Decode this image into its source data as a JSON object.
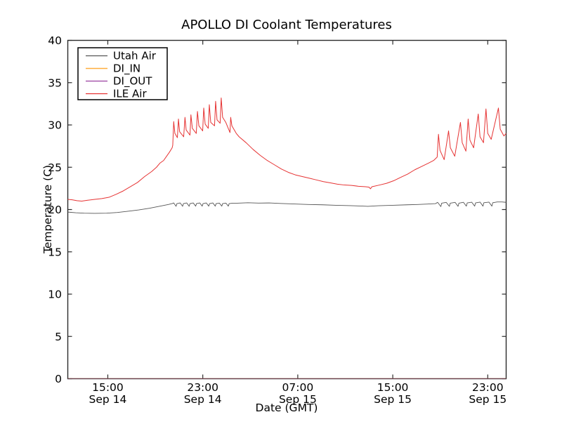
{
  "figure": {
    "background": "#ffffff",
    "axis_color": "#2b2b2b",
    "tick_length": 6
  },
  "chart_data": {
    "type": "line",
    "title": "APOLLO DI Coolant Temperatures",
    "xlabel": "Date (GMT)",
    "ylabel": "Temperature (C)",
    "ylim": [
      0,
      40
    ],
    "y_ticks": [
      0,
      5,
      10,
      15,
      20,
      25,
      30,
      35,
      40
    ],
    "x_range_hours_from_sep14_0000_gmt": [
      11.63,
      48.55
    ],
    "x_ticks": [
      {
        "t": 15,
        "time": "15:00",
        "date": "Sep 14"
      },
      {
        "t": 23,
        "time": "23:00",
        "date": "Sep 14"
      },
      {
        "t": 31,
        "time": "07:00",
        "date": "Sep 15"
      },
      {
        "t": 39,
        "time": "15:00",
        "date": "Sep 15"
      },
      {
        "t": 47,
        "time": "23:00",
        "date": "Sep 15"
      }
    ],
    "grid": false,
    "legend": {
      "position": "upper-left",
      "border_color": "#000000",
      "background": "#ffffff"
    },
    "series": [
      {
        "name": "Utah Air",
        "color": "#555555",
        "width": 0.9,
        "opacity": 1,
        "points": [
          [
            11.63,
            19.7
          ],
          [
            12.3,
            19.62
          ],
          [
            13.0,
            19.57
          ],
          [
            13.9,
            19.55
          ],
          [
            14.9,
            19.57
          ],
          [
            15.8,
            19.65
          ],
          [
            16.7,
            19.8
          ],
          [
            17.6,
            19.95
          ],
          [
            18.5,
            20.15
          ],
          [
            19.4,
            20.4
          ],
          [
            20.1,
            20.6
          ],
          [
            20.45,
            20.72
          ],
          [
            20.55,
            20.78
          ],
          [
            20.75,
            20.38
          ],
          [
            20.82,
            20.7
          ],
          [
            21.1,
            20.78
          ],
          [
            21.3,
            20.38
          ],
          [
            21.37,
            20.7
          ],
          [
            21.65,
            20.78
          ],
          [
            21.85,
            20.38
          ],
          [
            21.92,
            20.7
          ],
          [
            22.2,
            20.78
          ],
          [
            22.4,
            20.4
          ],
          [
            22.47,
            20.7
          ],
          [
            22.75,
            20.78
          ],
          [
            22.95,
            20.4
          ],
          [
            23.02,
            20.7
          ],
          [
            23.3,
            20.78
          ],
          [
            23.5,
            20.4
          ],
          [
            23.57,
            20.7
          ],
          [
            23.85,
            20.78
          ],
          [
            24.05,
            20.4
          ],
          [
            24.12,
            20.7
          ],
          [
            24.4,
            20.76
          ],
          [
            24.6,
            20.4
          ],
          [
            24.67,
            20.7
          ],
          [
            24.95,
            20.76
          ],
          [
            25.15,
            20.4
          ],
          [
            25.22,
            20.7
          ],
          [
            25.5,
            20.75
          ],
          [
            25.9,
            20.75
          ],
          [
            26.8,
            20.8
          ],
          [
            27.7,
            20.76
          ],
          [
            28.6,
            20.78
          ],
          [
            29.5,
            20.72
          ],
          [
            30.7,
            20.66
          ],
          [
            31.9,
            20.6
          ],
          [
            33.1,
            20.56
          ],
          [
            34.2,
            20.5
          ],
          [
            35.4,
            20.46
          ],
          [
            36.3,
            20.42
          ],
          [
            36.9,
            20.38
          ],
          [
            37.8,
            20.45
          ],
          [
            39.0,
            20.5
          ],
          [
            40.2,
            20.56
          ],
          [
            41.1,
            20.6
          ],
          [
            41.9,
            20.65
          ],
          [
            42.6,
            20.7
          ],
          [
            42.78,
            20.85
          ],
          [
            43.05,
            20.35
          ],
          [
            43.12,
            20.75
          ],
          [
            43.5,
            20.85
          ],
          [
            43.77,
            20.38
          ],
          [
            43.84,
            20.75
          ],
          [
            44.25,
            20.85
          ],
          [
            44.5,
            20.38
          ],
          [
            44.57,
            20.75
          ],
          [
            44.95,
            20.86
          ],
          [
            45.2,
            20.4
          ],
          [
            45.27,
            20.78
          ],
          [
            45.65,
            20.87
          ],
          [
            45.9,
            20.4
          ],
          [
            45.97,
            20.78
          ],
          [
            46.35,
            20.88
          ],
          [
            46.6,
            20.4
          ],
          [
            46.67,
            20.8
          ],
          [
            47.1,
            20.88
          ],
          [
            47.35,
            20.4
          ],
          [
            47.42,
            20.8
          ],
          [
            47.8,
            20.9
          ],
          [
            48.2,
            20.9
          ],
          [
            48.55,
            20.85
          ]
        ]
      },
      {
        "name": "DI_IN",
        "color": "#ffae3c",
        "width": 1.5,
        "opacity": 0.6,
        "points": [
          [
            11.63,
            0
          ],
          [
            48.55,
            0
          ]
        ]
      },
      {
        "name": "DI_OUT",
        "color": "#9a3fa0",
        "width": 1.2,
        "opacity": 0.6,
        "points": [
          [
            11.63,
            0
          ],
          [
            48.55,
            0
          ]
        ]
      },
      {
        "name": "ILE Air",
        "color": "#e63333",
        "width": 1,
        "opacity": 1,
        "points": [
          [
            11.63,
            21.2
          ],
          [
            12.0,
            21.15
          ],
          [
            12.4,
            21.05
          ],
          [
            12.8,
            21.0
          ],
          [
            13.3,
            21.1
          ],
          [
            13.9,
            21.2
          ],
          [
            14.5,
            21.3
          ],
          [
            15.1,
            21.45
          ],
          [
            15.7,
            21.8
          ],
          [
            16.3,
            22.2
          ],
          [
            16.9,
            22.7
          ],
          [
            17.5,
            23.2
          ],
          [
            18.1,
            23.9
          ],
          [
            18.7,
            24.5
          ],
          [
            19.1,
            25.0
          ],
          [
            19.4,
            25.5
          ],
          [
            19.7,
            25.8
          ],
          [
            19.9,
            26.2
          ],
          [
            20.2,
            26.8
          ],
          [
            20.42,
            27.3
          ],
          [
            20.47,
            27.6
          ],
          [
            20.55,
            30.4
          ],
          [
            20.65,
            29.0
          ],
          [
            20.86,
            28.5
          ],
          [
            20.95,
            30.7
          ],
          [
            21.05,
            29.2
          ],
          [
            21.39,
            28.6
          ],
          [
            21.5,
            30.9
          ],
          [
            21.6,
            29.4
          ],
          [
            21.92,
            28.8
          ],
          [
            22.0,
            31.2
          ],
          [
            22.12,
            29.6
          ],
          [
            22.45,
            29.0
          ],
          [
            22.55,
            31.6
          ],
          [
            22.67,
            29.9
          ],
          [
            22.99,
            29.3
          ],
          [
            23.08,
            32.0
          ],
          [
            23.2,
            30.1
          ],
          [
            23.46,
            29.6
          ],
          [
            23.55,
            32.4
          ],
          [
            23.67,
            30.3
          ],
          [
            23.99,
            29.9
          ],
          [
            24.08,
            32.8
          ],
          [
            24.2,
            30.6
          ],
          [
            24.46,
            30.2
          ],
          [
            24.55,
            33.2
          ],
          [
            24.67,
            30.9
          ],
          [
            24.94,
            30.3
          ],
          [
            25.29,
            29.1
          ],
          [
            25.35,
            30.9
          ],
          [
            25.45,
            29.9
          ],
          [
            25.82,
            29.0
          ],
          [
            26.06,
            28.6
          ],
          [
            26.65,
            27.9
          ],
          [
            27.24,
            27.1
          ],
          [
            27.84,
            26.4
          ],
          [
            28.43,
            25.8
          ],
          [
            29.02,
            25.3
          ],
          [
            29.61,
            24.8
          ],
          [
            30.2,
            24.4
          ],
          [
            30.79,
            24.1
          ],
          [
            31.38,
            23.9
          ],
          [
            31.98,
            23.7
          ],
          [
            32.57,
            23.5
          ],
          [
            33.16,
            23.3
          ],
          [
            33.75,
            23.15
          ],
          [
            34.34,
            23.0
          ],
          [
            34.93,
            22.9
          ],
          [
            35.53,
            22.85
          ],
          [
            36.12,
            22.75
          ],
          [
            36.71,
            22.7
          ],
          [
            37.0,
            22.65
          ],
          [
            37.12,
            22.45
          ],
          [
            37.25,
            22.7
          ],
          [
            37.89,
            22.9
          ],
          [
            38.48,
            23.1
          ],
          [
            39.07,
            23.4
          ],
          [
            39.66,
            23.8
          ],
          [
            40.26,
            24.2
          ],
          [
            40.85,
            24.7
          ],
          [
            41.44,
            25.1
          ],
          [
            42.03,
            25.5
          ],
          [
            42.44,
            25.8
          ],
          [
            42.74,
            26.2
          ],
          [
            42.85,
            28.9
          ],
          [
            42.98,
            27.0
          ],
          [
            43.33,
            25.9
          ],
          [
            43.7,
            29.3
          ],
          [
            43.85,
            27.3
          ],
          [
            44.22,
            26.3
          ],
          [
            44.7,
            30.3
          ],
          [
            44.85,
            27.9
          ],
          [
            45.16,
            26.9
          ],
          [
            45.35,
            30.7
          ],
          [
            45.5,
            28.2
          ],
          [
            45.81,
            27.3
          ],
          [
            46.2,
            31.3
          ],
          [
            46.35,
            28.6
          ],
          [
            46.64,
            27.9
          ],
          [
            46.85,
            31.9
          ],
          [
            47.0,
            29.0
          ],
          [
            47.29,
            28.3
          ],
          [
            47.9,
            32.0
          ],
          [
            48.05,
            29.5
          ],
          [
            48.36,
            28.7
          ],
          [
            48.55,
            29.0
          ]
        ]
      }
    ]
  }
}
